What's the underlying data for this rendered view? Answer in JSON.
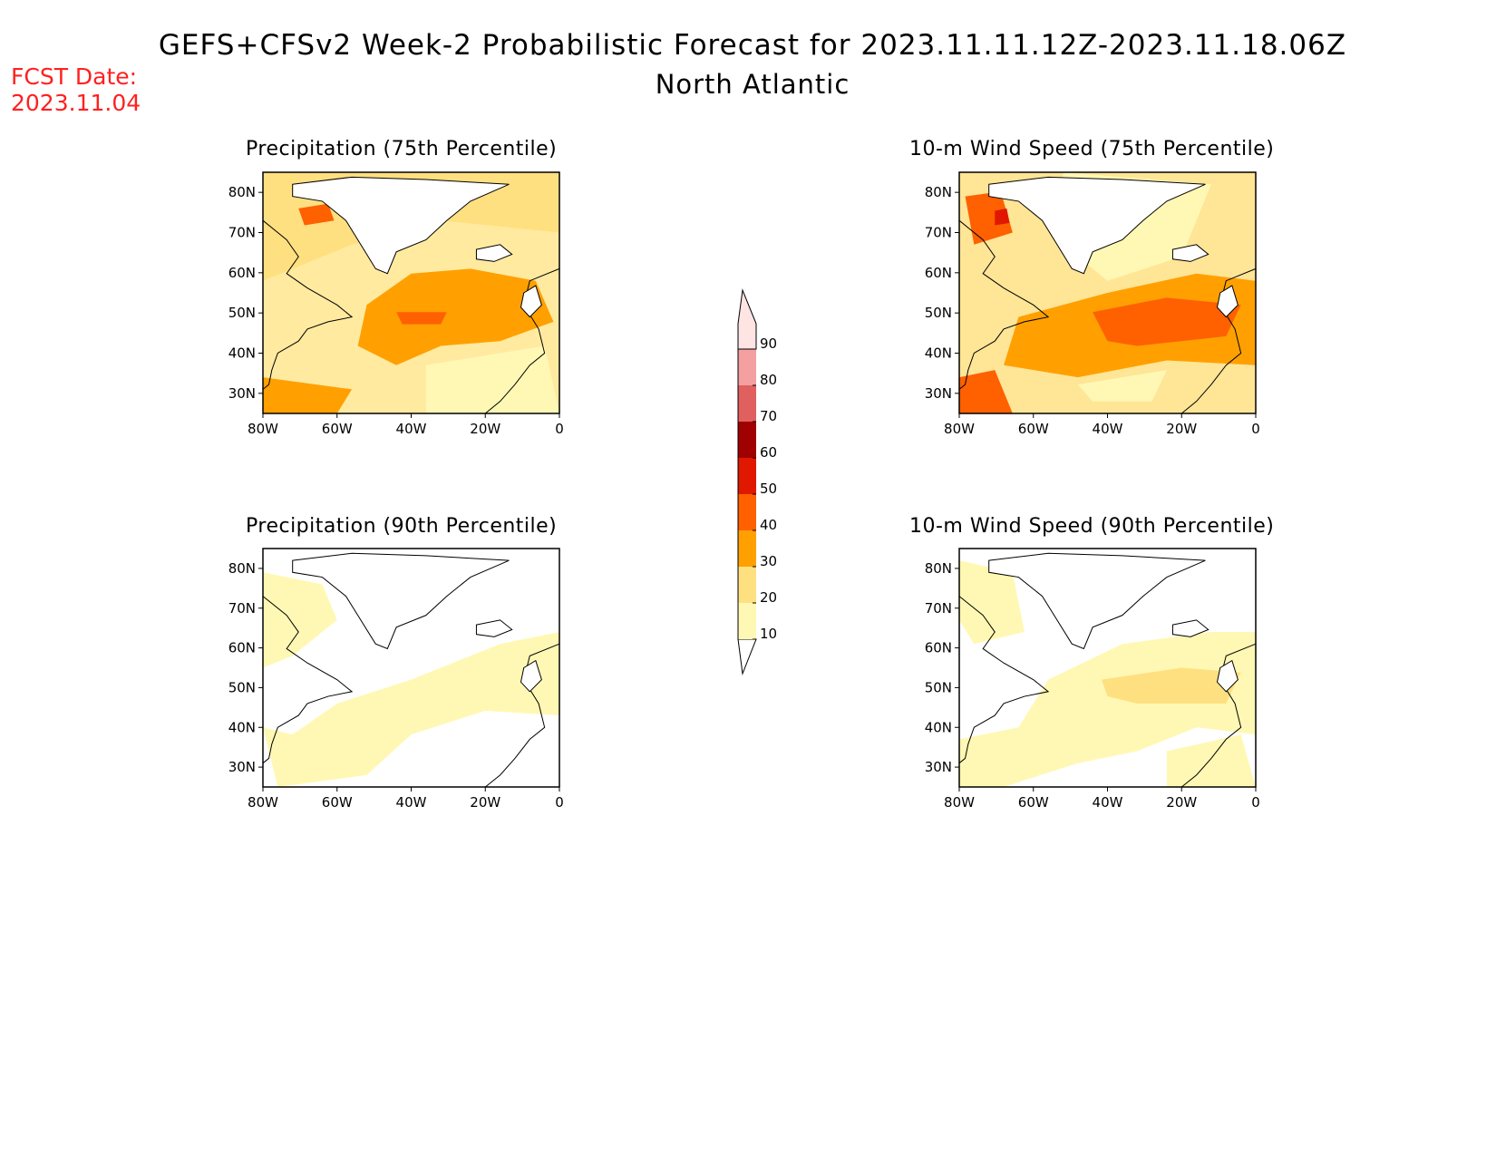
{
  "header": {
    "title": "GEFS+CFSv2 Week-2 Probabilistic Forecast for 2023.11.11.12Z-2023.11.18.06Z",
    "subtitle": "North Atlantic",
    "fcst_label": "FCST Date:",
    "fcst_date": "2023.11.04"
  },
  "lat_labels": [
    "80N",
    "70N",
    "60N",
    "50N",
    "40N",
    "30N"
  ],
  "lon_labels": [
    "80W",
    "60W",
    "40W",
    "20W",
    "0"
  ],
  "panels": [
    {
      "id": "precip-75",
      "title": "Precipitation (75th Percentile)",
      "overall_level": 20,
      "background": "#ffeaa0"
    },
    {
      "id": "wind-75",
      "title": "10-m Wind Speed (75th Percentile)",
      "overall_level": 20,
      "background": "#ffe596"
    },
    {
      "id": "precip-90",
      "title": "Precipitation (90th Percentile)",
      "overall_level": 10,
      "background": "#ffffff"
    },
    {
      "id": "wind-90",
      "title": "10-m Wind Speed (90th Percentile)",
      "overall_level": 10,
      "background": "#ffffff"
    }
  ],
  "colorbar": {
    "levels": [
      "10",
      "20",
      "30",
      "40",
      "50",
      "60",
      "70",
      "80",
      "90"
    ],
    "colors": [
      "#fff8b4",
      "#ffe080",
      "#ffa000",
      "#ff6000",
      "#e01800",
      "#a00000",
      "#e06060",
      "#f4a0a0",
      "#ffe4e4"
    ]
  }
}
